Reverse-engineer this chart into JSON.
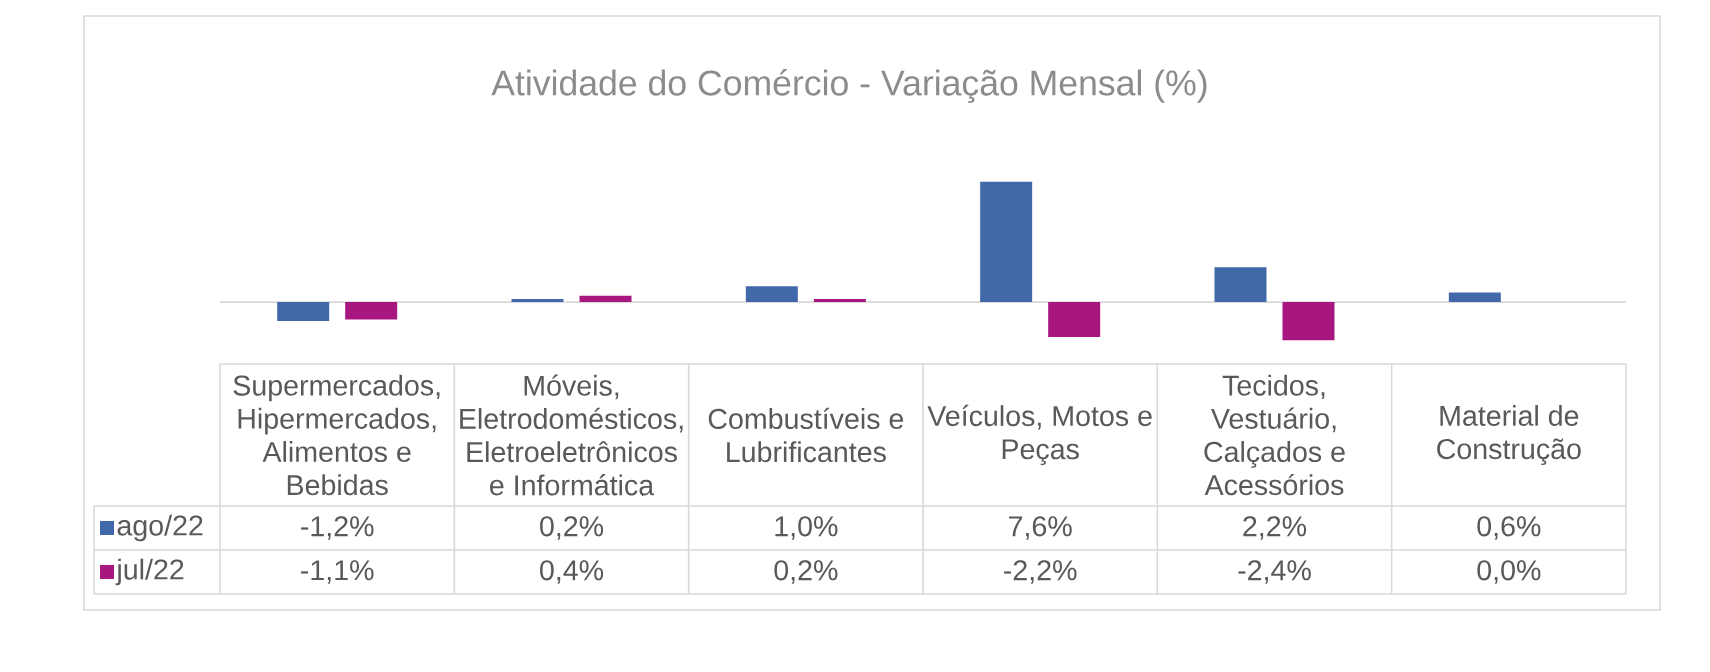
{
  "chart_data": {
    "type": "bar",
    "title": "Atividade do Comércio - Variação Mensal (%)",
    "categories": [
      "Supermercados, Hipermercados, Alimentos e Bebidas",
      "Móveis, Eletrodomésticos, Eletroeletrônicos e Informática",
      "Combustíveis e Lubrificantes",
      "Veículos, Motos e Peças",
      "Tecidos, Vestuário, Calçados e Acessórios",
      "Material de Construção"
    ],
    "series": [
      {
        "name": "ago/22",
        "color": "#4169AA",
        "values": [
          -1.2,
          0.2,
          1.0,
          7.6,
          2.2,
          0.6
        ],
        "value_labels": [
          "-1,2%",
          "0,2%",
          "1,0%",
          "7,6%",
          "2,2%",
          "0,6%"
        ]
      },
      {
        "name": "jul/22",
        "color": "#A8177F",
        "values": [
          -1.1,
          0.4,
          0.2,
          -2.2,
          -2.4,
          0.0
        ],
        "value_labels": [
          "-1,1%",
          "0,4%",
          "0,2%",
          "-2,2%",
          "-2,4%",
          "0,0%"
        ]
      }
    ],
    "legend": "bottom left"
  }
}
